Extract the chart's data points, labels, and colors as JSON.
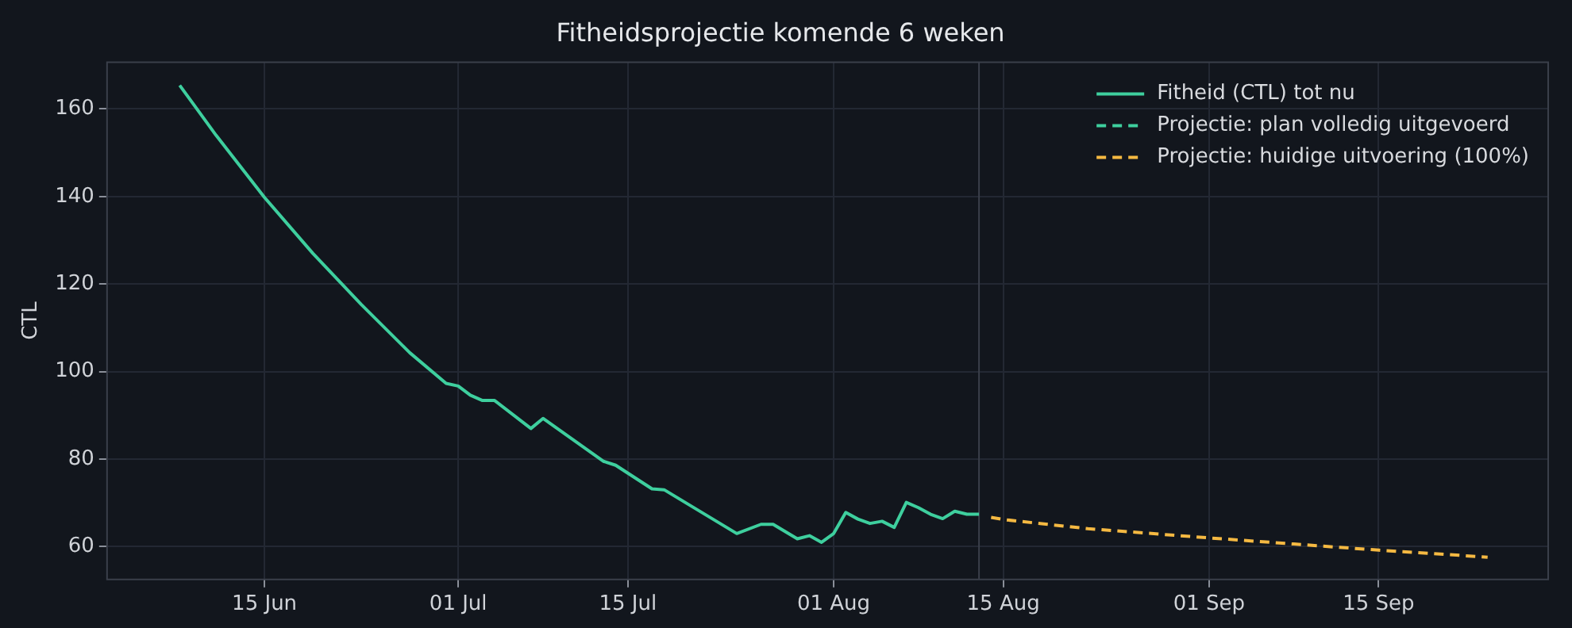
{
  "chart_data": {
    "type": "line",
    "title": "Fitheidsprojectie komende 6 weken",
    "ylabel": "CTL",
    "xlim": [
      "--06-02",
      "--09-29"
    ],
    "ylim": [
      52.5,
      170.7
    ],
    "xticks": [
      {
        "value": "--06-15",
        "label": "15 Jun"
      },
      {
        "value": "--07-01",
        "label": "01 Jul"
      },
      {
        "value": "--07-15",
        "label": "15 Jul"
      },
      {
        "value": "--08-01",
        "label": "01 Aug"
      },
      {
        "value": "--08-15",
        "label": "15 Aug"
      },
      {
        "value": "--09-01",
        "label": "01 Sep"
      },
      {
        "value": "--09-15",
        "label": "15 Sep"
      }
    ],
    "yticks": [
      60,
      80,
      100,
      120,
      140,
      160
    ],
    "grid": true,
    "legend": "top right",
    "ref_lines": [
      {
        "axis": "x",
        "value": "--08-13",
        "color": "#3a3f4a"
      }
    ],
    "series": [
      {
        "name": "Fitheid (CTL) tot nu",
        "color": "#3ecf9e",
        "line_style": "solid",
        "x": [
          "--06-08",
          "--06-11",
          "--06-15",
          "--06-19",
          "--06-23",
          "--06-27",
          "--06-30",
          "--07-01",
          "--07-02",
          "--07-03",
          "--07-04",
          "--07-07",
          "--07-08",
          "--07-13",
          "--07-14",
          "--07-17",
          "--07-18",
          "--07-24",
          "--07-26",
          "--07-27",
          "--07-29",
          "--07-30",
          "--07-31",
          "--08-01",
          "--08-02",
          "--08-03",
          "--08-04",
          "--08-05",
          "--08-06",
          "--08-07",
          "--08-08",
          "--08-09",
          "--08-10",
          "--08-11",
          "--08-12",
          "--08-13"
        ],
        "values": [
          165.4,
          154.0,
          139.8,
          127.0,
          115.3,
          104.3,
          97.3,
          96.7,
          94.6,
          93.4,
          93.4,
          87.0,
          89.3,
          79.5,
          78.6,
          73.2,
          73.0,
          63.0,
          65.1,
          65.1,
          61.8,
          62.5,
          61.0,
          63.0,
          67.8,
          66.3,
          65.3,
          65.8,
          64.4,
          70.1,
          68.9,
          67.4,
          66.4,
          68.1,
          67.4,
          67.4
        ]
      },
      {
        "name": "Projectie: plan volledig uitgevoerd",
        "color": "#3ecf9e",
        "line_style": "dashed"
      },
      {
        "name": "Projectie: huidige uitvoering (100%)",
        "color": "#f5b942",
        "line_style": "dashed",
        "x": [
          "--08-14",
          "--08-15",
          "--08-22",
          "--09-01",
          "--09-08",
          "--09-15",
          "--09-24"
        ],
        "values": [
          66.7,
          66.2,
          64.1,
          62.0,
          60.6,
          59.2,
          57.6
        ]
      }
    ]
  }
}
